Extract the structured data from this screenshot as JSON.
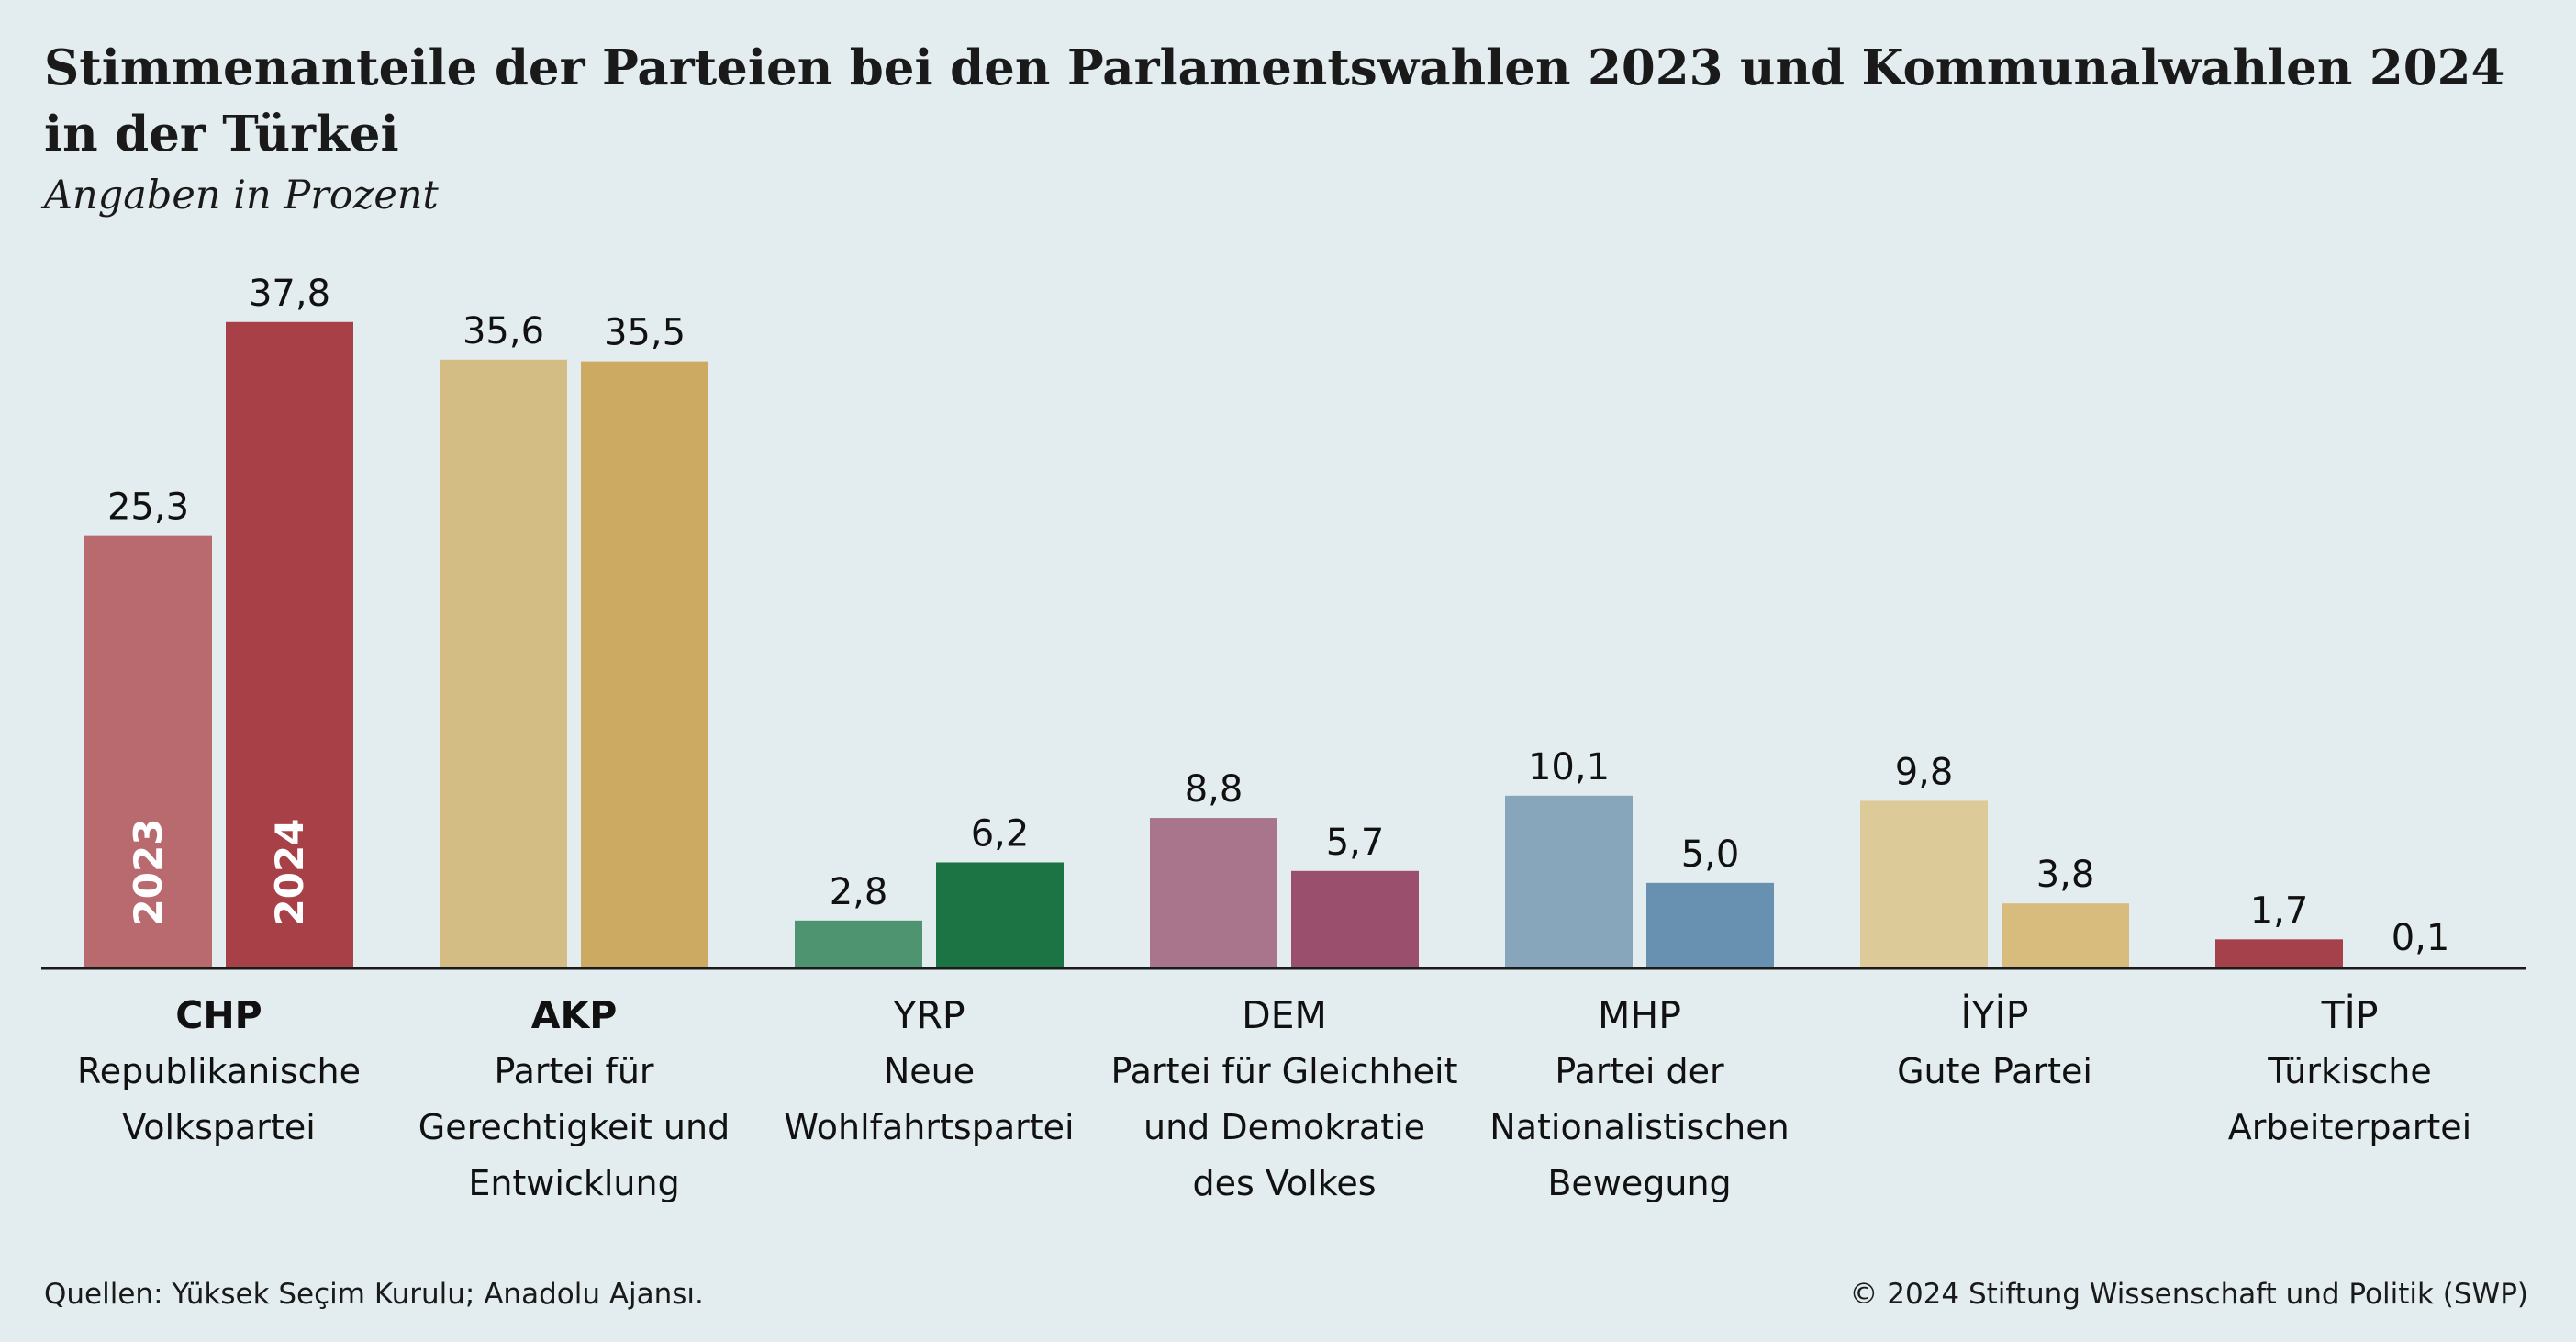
{
  "header": {
    "title_line1": "Stimmenanteile der Parteien bei den Parlamentswahlen 2023 und Kommunalwahlen 2024",
    "title_line2": "in der Türkei",
    "subtitle": "Angaben in Prozent"
  },
  "footer": {
    "source": "Quellen: Yüksek Seçim Kurulu; Anadolu Ajansı.",
    "copyright": "© 2024 Stiftung Wissenschaft und Politik (SWP)"
  },
  "chart_data": {
    "type": "bar",
    "title": "Stimmenanteile der Parteien bei den Parlamentswahlen 2023 und Kommunalwahlen 2024 in der Türkei",
    "subtitle": "Angaben in Prozent",
    "ylim": [
      0,
      40
    ],
    "grid": false,
    "legend": "year labels inside first group bars",
    "series_labels": [
      "2023",
      "2024"
    ],
    "categories": [
      {
        "abbr": "CHP",
        "bold": true,
        "name_lines": [
          "Republikanische",
          "Volkspartei"
        ]
      },
      {
        "abbr": "AKP",
        "bold": true,
        "name_lines": [
          "Partei für",
          "Gerechtigkeit und",
          "Entwicklung"
        ]
      },
      {
        "abbr": "YRP",
        "bold": false,
        "name_lines": [
          "Neue",
          "Wohlfahrtspartei"
        ]
      },
      {
        "abbr": "DEM",
        "bold": false,
        "name_lines": [
          "Partei für Gleichheit",
          "und Demokratie",
          "des Volkes"
        ]
      },
      {
        "abbr": "MHP",
        "bold": false,
        "name_lines": [
          "Partei der",
          "Nationalistischen",
          "Bewegung"
        ]
      },
      {
        "abbr": "İYİP",
        "bold": false,
        "name_lines": [
          "Gute Partei"
        ]
      },
      {
        "abbr": "TİP",
        "bold": false,
        "name_lines": [
          "Türkische",
          "Arbeiterpartei"
        ]
      }
    ],
    "series": [
      {
        "name": "2023",
        "values": [
          25.3,
          35.6,
          2.8,
          8.8,
          10.1,
          9.8,
          1.7
        ],
        "labels": [
          "25,3",
          "35,6",
          "2,8",
          "8,8",
          "10,1",
          "9,8",
          "1,7"
        ],
        "colors": [
          "#b86a6f",
          "#d4bd85",
          "#4f9470",
          "#a8758c",
          "#87a6bc",
          "#dccb98",
          "#a5414b"
        ]
      },
      {
        "name": "2024",
        "values": [
          37.8,
          35.5,
          6.2,
          5.7,
          5.0,
          3.8,
          0.1
        ],
        "labels": [
          "37,8",
          "35,5",
          "6,2",
          "5,7",
          "5,0",
          "3,8",
          "0,1"
        ],
        "colors": [
          "#a84047",
          "#cdaa61",
          "#1c7444",
          "#9a4f6c",
          "#6890b0",
          "#d8bc7e",
          "#a5414b"
        ]
      }
    ]
  }
}
